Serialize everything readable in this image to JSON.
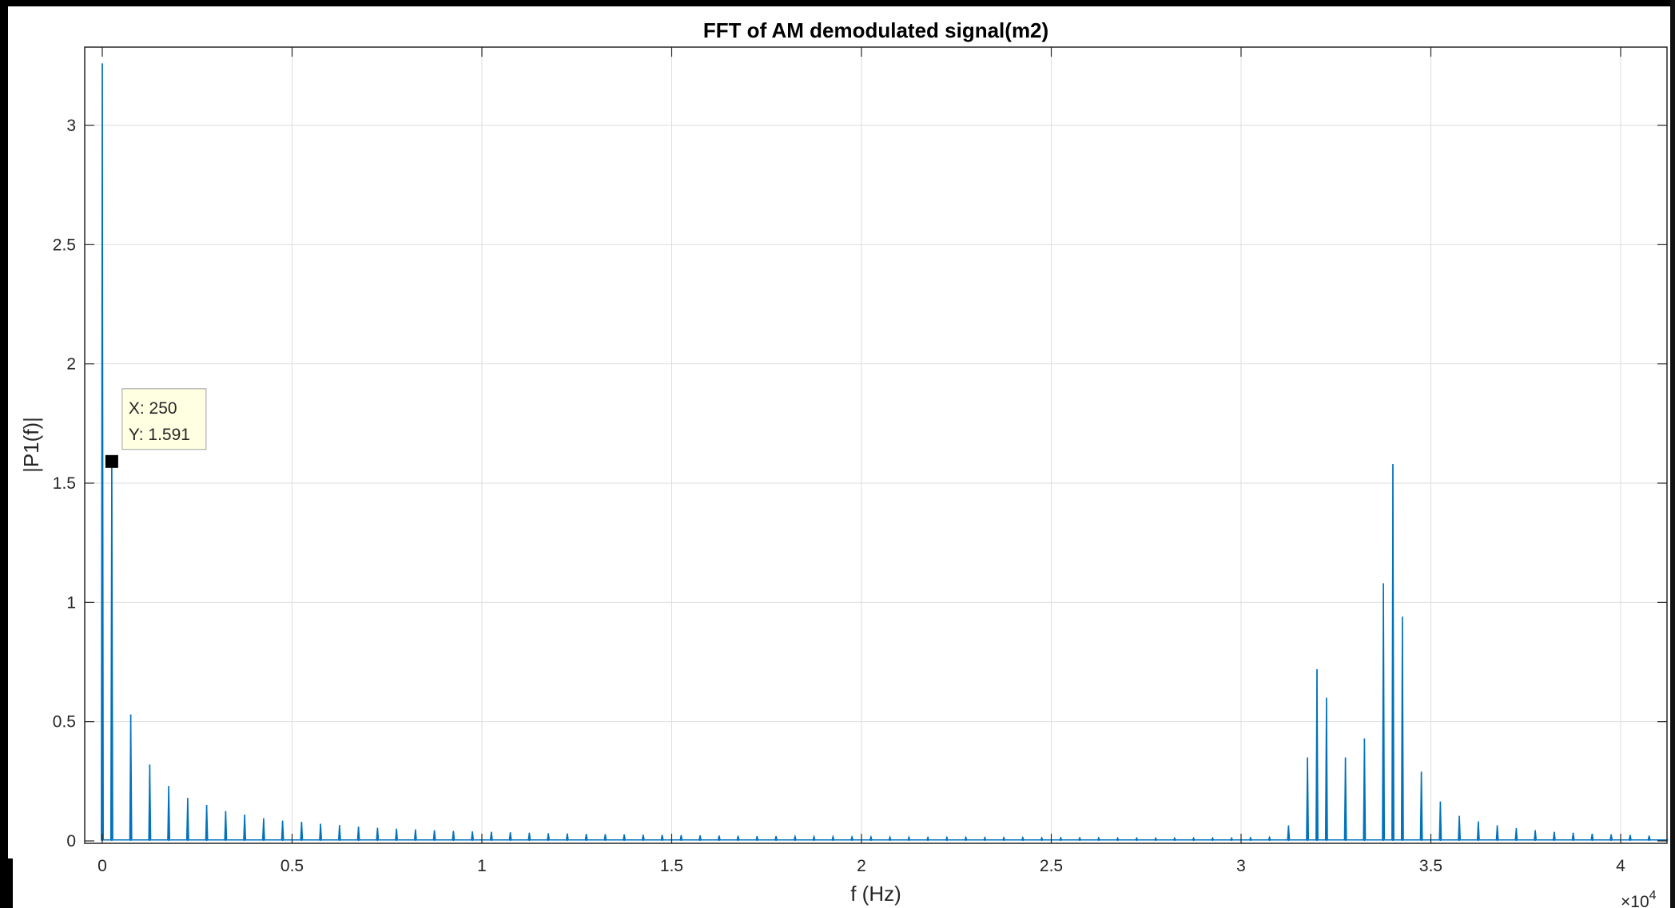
{
  "chart_data": {
    "type": "line",
    "title": "FFT of AM demodulated signal(m2)",
    "xlabel": "f (Hz)",
    "ylabel": "|P1(f)|",
    "x_exponent_label": "×10",
    "x_exponent_power": "4",
    "xlim": [
      0,
      41250
    ],
    "ylim": [
      0,
      3.3
    ],
    "x_ticks": [
      0,
      5000,
      10000,
      15000,
      20000,
      25000,
      30000,
      35000,
      40000
    ],
    "x_tick_labels": [
      "0",
      "0.5",
      "1",
      "1.5",
      "2",
      "2.5",
      "3",
      "3.5",
      "4"
    ],
    "y_ticks": [
      0,
      0.5,
      1,
      1.5,
      2,
      2.5,
      3
    ],
    "y_tick_labels": [
      "0",
      "0.5",
      "1",
      "1.5",
      "2",
      "2.5",
      "3"
    ],
    "grid": true,
    "line_color": "#0072BD",
    "series": [
      {
        "peaks": [
          [
            0,
            3.26
          ],
          [
            250,
            1.591
          ],
          [
            750,
            0.53
          ],
          [
            1250,
            0.32
          ],
          [
            1750,
            0.23
          ],
          [
            2250,
            0.18
          ],
          [
            2750,
            0.15
          ],
          [
            3250,
            0.125
          ],
          [
            3750,
            0.11
          ],
          [
            4250,
            0.095
          ],
          [
            4750,
            0.085
          ],
          [
            5250,
            0.08
          ],
          [
            5750,
            0.072
          ],
          [
            6250,
            0.066
          ],
          [
            6750,
            0.06
          ],
          [
            7250,
            0.055
          ],
          [
            7750,
            0.051
          ],
          [
            8250,
            0.048
          ],
          [
            8750,
            0.045
          ],
          [
            9250,
            0.042
          ],
          [
            9750,
            0.04
          ],
          [
            10250,
            0.038
          ],
          [
            10750,
            0.036
          ],
          [
            11250,
            0.034
          ],
          [
            11750,
            0.032
          ],
          [
            12250,
            0.031
          ],
          [
            12750,
            0.029
          ],
          [
            13250,
            0.028
          ],
          [
            13750,
            0.027
          ],
          [
            14250,
            0.026
          ],
          [
            14750,
            0.025
          ],
          [
            15250,
            0.024
          ],
          [
            15750,
            0.023
          ],
          [
            16250,
            0.022
          ],
          [
            16750,
            0.021
          ],
          [
            17250,
            0.02
          ],
          [
            17750,
            0.02
          ],
          [
            18250,
            0.019
          ],
          [
            18750,
            0.018
          ],
          [
            19250,
            0.018
          ],
          [
            19750,
            0.017
          ],
          [
            20250,
            0.017
          ],
          [
            20750,
            0.016
          ],
          [
            21250,
            0.016
          ],
          [
            21750,
            0.015
          ],
          [
            22250,
            0.015
          ],
          [
            22750,
            0.015
          ],
          [
            23250,
            0.014
          ],
          [
            23750,
            0.014
          ],
          [
            24250,
            0.014
          ],
          [
            24750,
            0.013
          ],
          [
            25250,
            0.013
          ],
          [
            25750,
            0.013
          ],
          [
            26250,
            0.013
          ],
          [
            26750,
            0.012
          ],
          [
            27250,
            0.012
          ],
          [
            27750,
            0.012
          ],
          [
            28250,
            0.012
          ],
          [
            28750,
            0.012
          ],
          [
            29250,
            0.012
          ],
          [
            29750,
            0.012
          ],
          [
            30250,
            0.013
          ],
          [
            30750,
            0.015
          ],
          [
            31250,
            0.065
          ],
          [
            31750,
            0.35
          ],
          [
            32000,
            0.72
          ],
          [
            32250,
            0.6
          ],
          [
            32750,
            0.35
          ],
          [
            33250,
            0.43
          ],
          [
            33750,
            1.08
          ],
          [
            34000,
            1.58
          ],
          [
            34250,
            0.94
          ],
          [
            34750,
            0.29
          ],
          [
            35250,
            0.165
          ],
          [
            35750,
            0.105
          ],
          [
            36250,
            0.082
          ],
          [
            36750,
            0.065
          ],
          [
            37250,
            0.053
          ],
          [
            37750,
            0.045
          ],
          [
            38250,
            0.038
          ],
          [
            38750,
            0.034
          ],
          [
            39250,
            0.03
          ],
          [
            39750,
            0.027
          ],
          [
            40250,
            0.025
          ],
          [
            40750,
            0.022
          ]
        ]
      }
    ],
    "datatip": {
      "x_text": "X: 250",
      "y_text": "Y: 1.591",
      "x": 250,
      "y": 1.591
    }
  }
}
